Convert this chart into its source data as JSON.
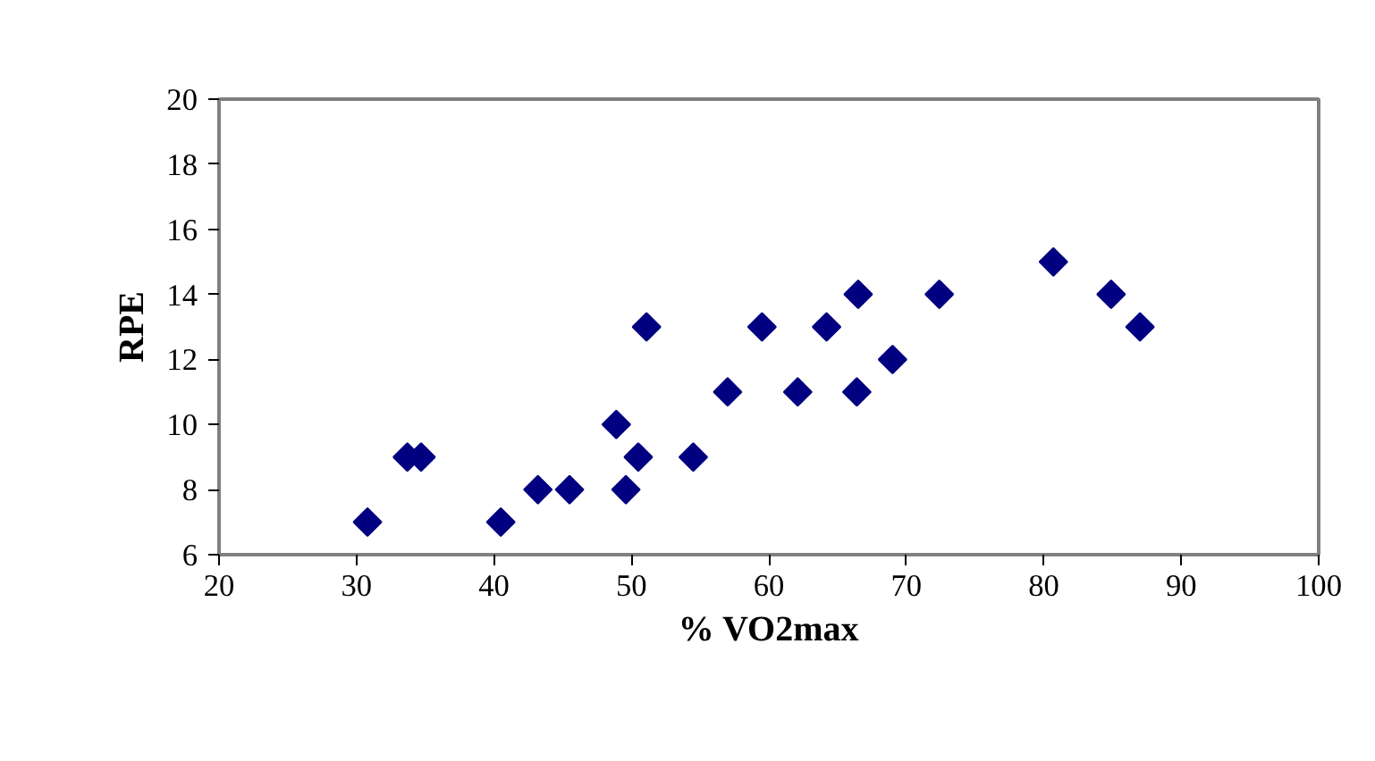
{
  "chart_data": {
    "type": "scatter",
    "xlabel": "% VO2max",
    "ylabel": "RPE",
    "x": [
      30.8,
      33.7,
      34.7,
      40.5,
      43.2,
      45.5,
      48.9,
      49.6,
      50.5,
      51.1,
      54.5,
      57.0,
      59.5,
      62.1,
      64.2,
      66.5,
      66.4,
      69.0,
      72.4,
      80.7,
      84.9,
      87.0
    ],
    "series": [
      {
        "color": "#000080",
        "values": [
          7,
          9,
          9,
          7,
          8,
          8,
          10,
          8,
          9,
          13,
          9,
          11,
          13,
          11,
          13,
          14,
          11,
          12,
          14,
          15,
          14,
          13
        ]
      }
    ],
    "xlim": [
      20,
      100
    ],
    "xticks": [
      20,
      30,
      40,
      50,
      60,
      70,
      80,
      90,
      100
    ],
    "ylim": [
      6,
      20
    ],
    "yticks": [
      6,
      8,
      10,
      12,
      14,
      16,
      18,
      20
    ],
    "grid": false,
    "marker": "diamond"
  }
}
